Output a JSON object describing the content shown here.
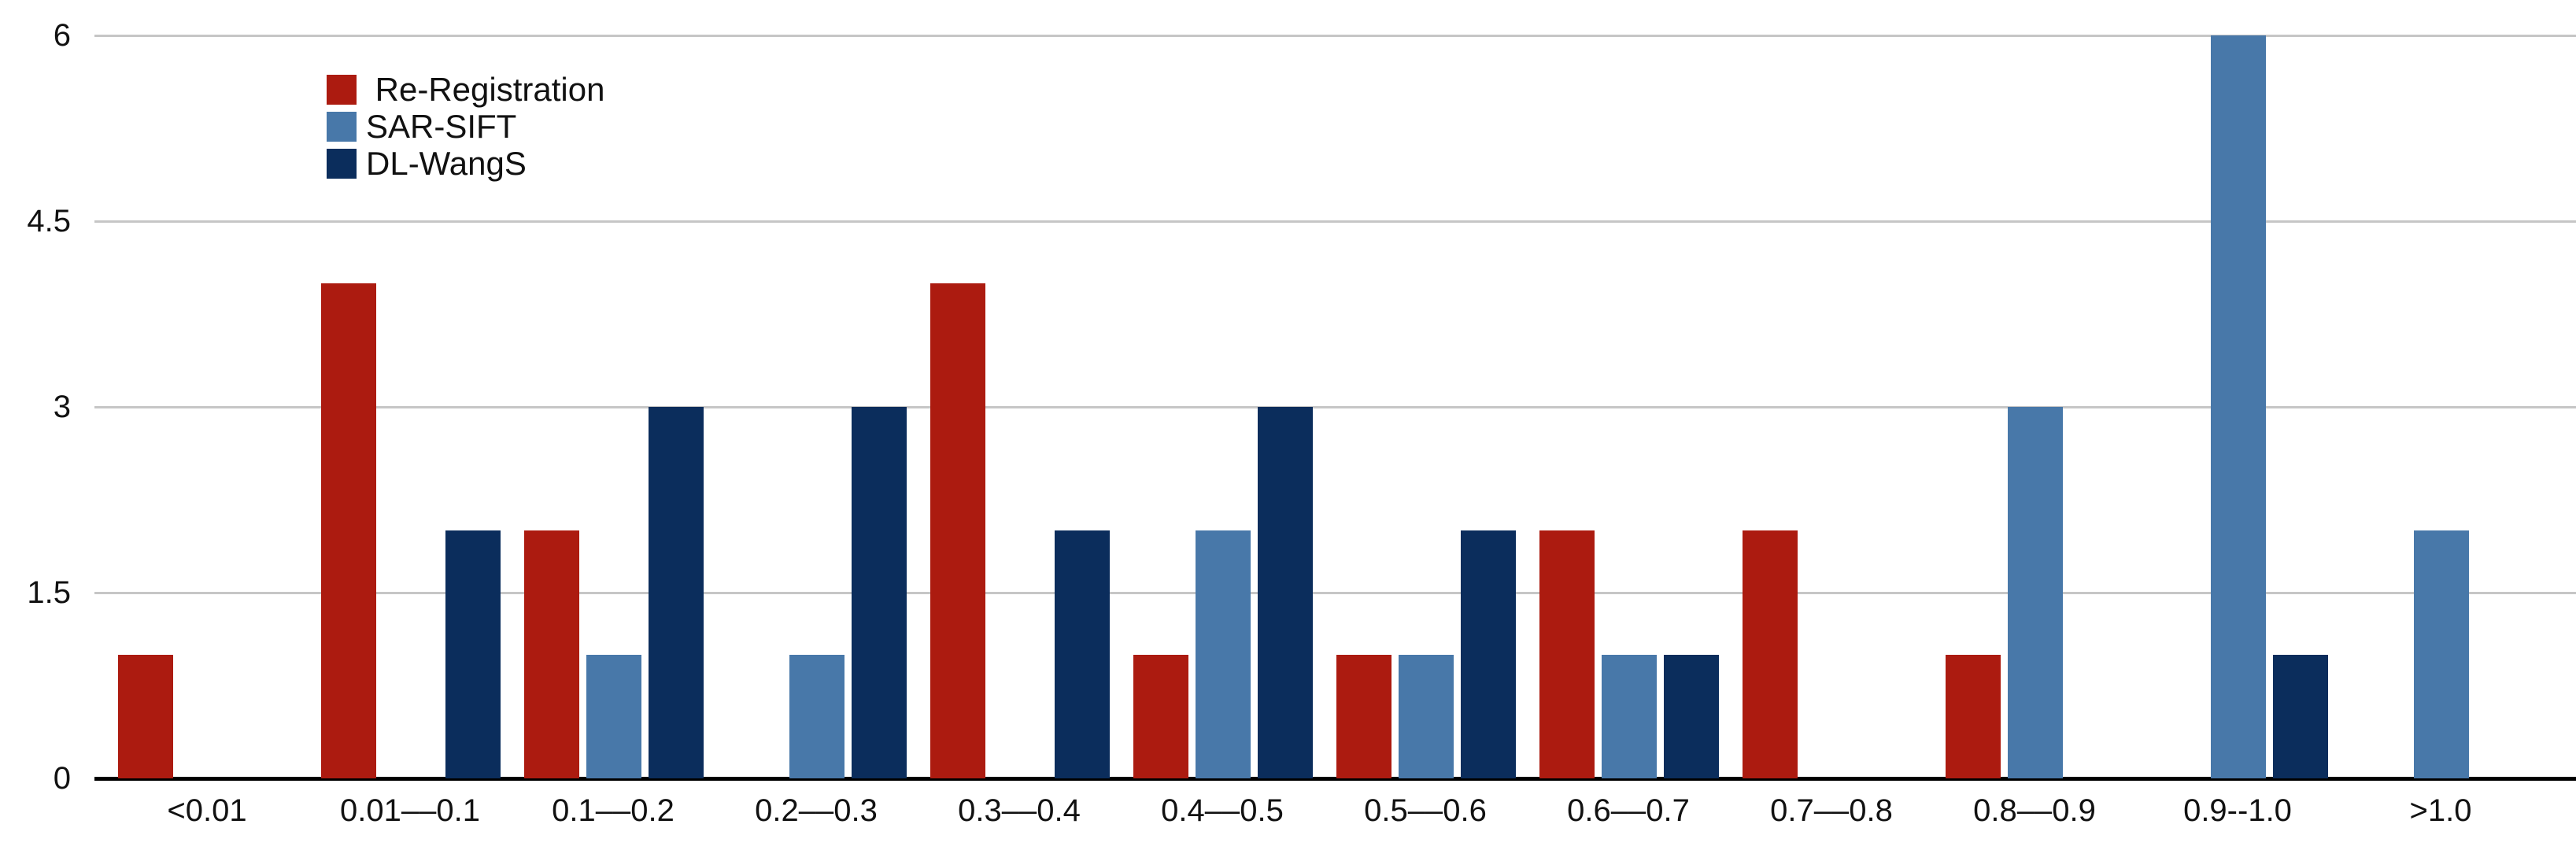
{
  "chart_data": {
    "type": "bar",
    "title": "",
    "xlabel": "",
    "ylabel": "",
    "categories": [
      "<0.01",
      "0.01––0.1",
      "0.1––0.2",
      "0.2––0.3",
      "0.3––0.4",
      "0.4––0.5",
      "0.5––0.6",
      "0.6––0.7",
      "0.7––0.8",
      "0.8––0.9",
      "0.9--1.0",
      ">1.0"
    ],
    "series": [
      {
        "name": "Re-Registration",
        "legend_label": " Re-Registration",
        "color": "#AC1B10",
        "values": [
          1,
          4,
          2,
          0,
          4,
          1,
          1,
          2,
          2,
          1,
          0,
          0
        ]
      },
      {
        "name": "SAR-SIFT",
        "legend_label": "SAR-SIFT",
        "color": "#4878A9",
        "values": [
          0,
          0,
          1,
          1,
          0,
          2,
          1,
          1,
          0,
          3,
          6,
          2
        ]
      },
      {
        "name": "DL-WangS",
        "legend_label": "DL-WangS",
        "color": "#0B2D5C",
        "values": [
          0,
          2,
          3,
          3,
          2,
          3,
          2,
          1,
          0,
          0,
          1,
          0
        ]
      }
    ],
    "ylim": [
      0,
      6
    ],
    "y_ticks": [
      0,
      1.5,
      3,
      4.5,
      6
    ],
    "y_tick_labels": [
      "0",
      "1.5",
      "3",
      "4.5",
      "6"
    ],
    "grid": true,
    "gridline_values": [
      1.5,
      3,
      4.5,
      6
    ],
    "legend_position": "top-left",
    "colors": {
      "grid": "#C6C6C6",
      "axis": "#000000",
      "background": "#FFFFFF",
      "text": "#111111"
    }
  }
}
